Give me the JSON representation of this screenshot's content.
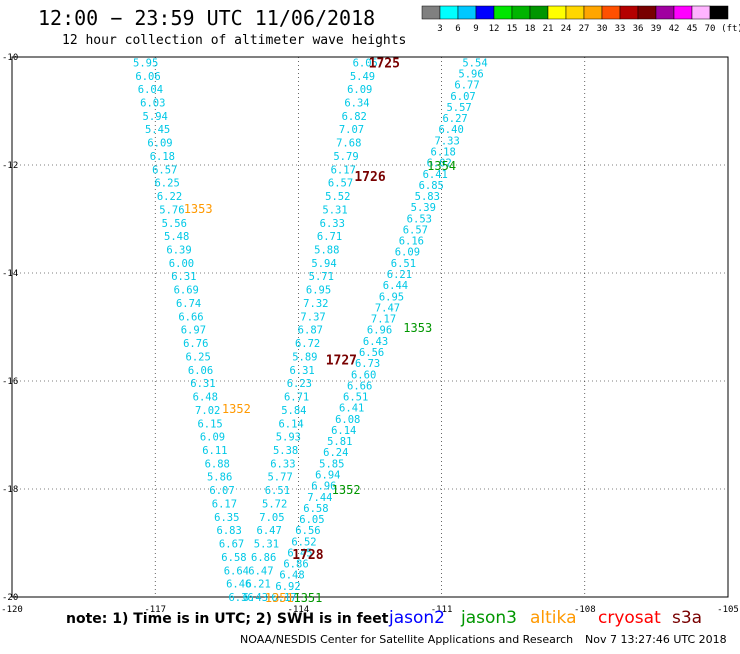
{
  "title": "12:00 − 23:59 UTC 11/06/2018",
  "subtitle": "12 hour collection of altimeter wave heights",
  "colorbar": {
    "colors": [
      "#808080",
      "#00ffff",
      "#00c8ff",
      "#0000ff",
      "#00e600",
      "#00b400",
      "#009600",
      "#ffff00",
      "#ffd700",
      "#ffa500",
      "#ff5000",
      "#b40000",
      "#780000",
      "#a000a0",
      "#ff00ff",
      "#ffb4ff",
      "#000000"
    ],
    "labels": [
      "3",
      "6",
      "9",
      "12",
      "15",
      "18",
      "21",
      "24",
      "27",
      "30",
      "33",
      "36",
      "39",
      "42",
      "45",
      "70"
    ],
    "unit_label": "(ft)"
  },
  "axes": {
    "lon_min": -120,
    "lon_max": -105,
    "lat_min": -20,
    "lat_max": -10,
    "lon_ticks": [
      "-120",
      "-117",
      "-114",
      "-111",
      "-108",
      "-105"
    ],
    "lat_ticks": [
      "-10",
      "-12",
      "-14",
      "-16",
      "-18",
      "-20"
    ]
  },
  "series_colors": {
    "jason2": "#0000ff",
    "jason3": "#009600",
    "altika": "#ff9900",
    "cryosat": "#ff0000",
    "s3a": "#780000",
    "values": "#00c8e6"
  },
  "passes": [
    {
      "satellite": "s3a",
      "time": "1725",
      "lon": -112.2,
      "lat": -10.1,
      "values": [],
      "lon_end": -112.2,
      "lat_end": -10.1
    },
    {
      "satellite": "s3a",
      "time": "1726",
      "lon": -112.5,
      "lat": -12.2,
      "values": [],
      "lon_end": -112.5,
      "lat_end": -12.2
    },
    {
      "satellite": "s3a",
      "time": "1727",
      "lon": -113.1,
      "lat": -15.6,
      "values": [],
      "lon_end": -113.1,
      "lat_end": -15.6
    },
    {
      "satellite": "s3a",
      "time": "1728",
      "lon": -113.8,
      "lat": -19.2,
      "values": [],
      "lon_end": -113.8,
      "lat_end": -19.2
    }
  ],
  "tracks": [
    {
      "name": "track-west",
      "start": {
        "lon": -117.2,
        "lat": -10.1
      },
      "end": {
        "lon": -115.2,
        "lat": -20.0
      },
      "values": [
        "5.95",
        "6.06",
        "6.04",
        "6.03",
        "5.94",
        "5.45",
        "6.09",
        "6.18",
        "6.57",
        "6.25",
        "6.22",
        "5.76",
        "5.56",
        "5.48",
        "6.39",
        "6.00",
        "6.31",
        "6.69",
        "6.74",
        "6.66",
        "6.97",
        "6.76",
        "6.25",
        "6.06",
        "6.31",
        "6.48",
        "7.02",
        "6.15",
        "6.09",
        "6.11",
        "6.88",
        "5.86",
        "6.07",
        "6.17",
        "6.35",
        "6.83",
        "6.67",
        "6.58",
        "6.64",
        "6.46",
        "6.36"
      ]
    },
    {
      "name": "track-middle",
      "start": {
        "lon": -112.6,
        "lat": -10.1
      },
      "end": {
        "lon": -114.9,
        "lat": -20.0
      },
      "values": [
        "6.05",
        "5.49",
        "6.09",
        "6.34",
        "6.82",
        "7.07",
        "7.68",
        "5.79",
        "6.17",
        "6.57",
        "5.52",
        "5.31",
        "6.33",
        "6.71",
        "5.88",
        "5.94",
        "5.71",
        "6.95",
        "7.32",
        "7.37",
        "6.87",
        "6.72",
        "5.89",
        "6.31",
        "6.23",
        "6.71",
        "5.84",
        "6.14",
        "5.93",
        "5.38",
        "6.33",
        "5.77",
        "6.51",
        "5.72",
        "7.05",
        "6.47",
        "5.31",
        "6.86",
        "6.47",
        "6.21",
        "6.43"
      ]
    },
    {
      "name": "track-east",
      "start": {
        "lon": -110.3,
        "lat": -10.1
      },
      "end": {
        "lon": -114.3,
        "lat": -20.0
      },
      "values": [
        "5.54",
        "5.96",
        "6.77",
        "6.07",
        "5.57",
        "6.27",
        "6.40",
        "7.33",
        "6.18",
        "6.02",
        "6.41",
        "6.85",
        "5.83",
        "5.39",
        "6.53",
        "6.57",
        "6.16",
        "6.09",
        "6.51",
        "6.21",
        "6.44",
        "6.95",
        "7.47",
        "7.17",
        "6.96",
        "6.43",
        "6.56",
        "6.73",
        "6.60",
        "6.66",
        "6.51",
        "6.41",
        "6.08",
        "6.14",
        "5.81",
        "6.24",
        "5.85",
        "6.94",
        "6.96",
        "7.44",
        "6.58",
        "6.05",
        "6.56",
        "6.52",
        "6.45",
        "6.86",
        "6.48",
        "6.92",
        "6.17"
      ]
    }
  ],
  "time_labels": [
    {
      "satellite": "jason3",
      "time": "1354",
      "lon": -111.0,
      "lat": -12.0
    },
    {
      "satellite": "jason3",
      "time": "1353",
      "lon": -111.5,
      "lat": -15.0
    },
    {
      "satellite": "jason3",
      "time": "1352",
      "lon": -113.0,
      "lat": -18.0
    },
    {
      "satellite": "jason3",
      "time": "1351",
      "lon": -113.8,
      "lat": -20.0
    },
    {
      "satellite": "altika",
      "time": "1353",
      "lon": -116.1,
      "lat": -12.8
    },
    {
      "satellite": "altika",
      "time": "1352",
      "lon": -115.3,
      "lat": -16.5
    },
    {
      "satellite": "altika",
      "time": "1351",
      "lon": -114.4,
      "lat": -20.0
    }
  ],
  "note": "note: 1) Time is in UTC; 2) SWH is in feet",
  "satellites": [
    {
      "name": "jason2",
      "color": "#0000ff"
    },
    {
      "name": "jason3",
      "color": "#009600"
    },
    {
      "name": "altika",
      "color": "#ff9900"
    },
    {
      "name": "cryosat",
      "color": "#ff0000"
    },
    {
      "name": "s3a",
      "color": "#780000"
    }
  ],
  "credit": "NOAA/NESDIS Center for Satellite Applications and Research",
  "generated": "Nov  7 13:27:46 UTC 2018"
}
